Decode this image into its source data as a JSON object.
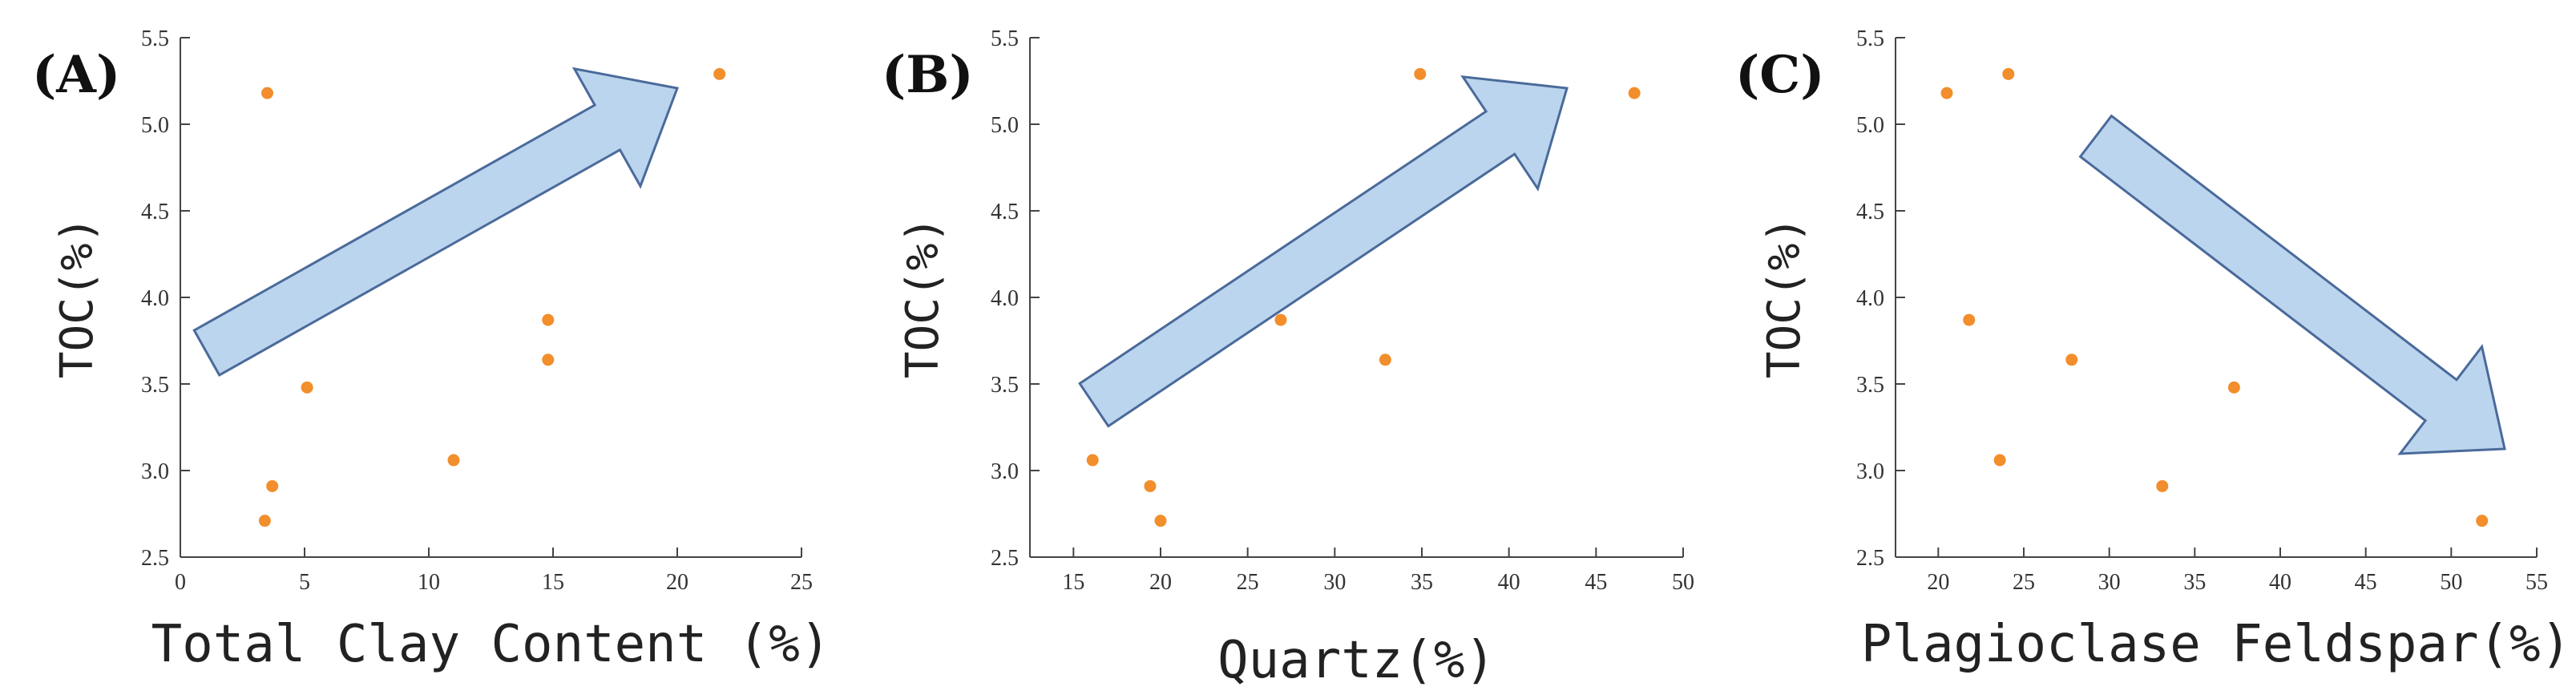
{
  "colors": {
    "point": "#f28e2b",
    "arrow_fill": "#bcd5ee",
    "arrow_stroke": "#4a6a9a"
  },
  "chart_data": [
    {
      "type": "scatter",
      "panel_label": "(A)",
      "xlabel": "Total Clay Content (%)",
      "ylabel": "TOC(%)",
      "xlim": [
        0,
        25
      ],
      "ylim": [
        2.5,
        5.5
      ],
      "xticks": [
        "0",
        "5",
        "10",
        "15",
        "20",
        "25"
      ],
      "yticks": [
        "2.5",
        "3.0",
        "3.5",
        "4.0",
        "4.5",
        "5.0",
        "5.5"
      ],
      "trend": "increasing",
      "points": [
        {
          "x": 3.5,
          "y": 5.18
        },
        {
          "x": 21.7,
          "y": 5.29
        },
        {
          "x": 14.8,
          "y": 3.87
        },
        {
          "x": 14.8,
          "y": 3.64
        },
        {
          "x": 5.1,
          "y": 3.48
        },
        {
          "x": 11.0,
          "y": 3.06
        },
        {
          "x": 3.7,
          "y": 2.91
        },
        {
          "x": 3.4,
          "y": 2.71
        }
      ]
    },
    {
      "type": "scatter",
      "panel_label": "(B)",
      "xlabel": "Quartz(%)",
      "ylabel": "TOC(%)",
      "xlim": [
        12.5,
        50
      ],
      "ylim": [
        2.5,
        5.5
      ],
      "xticks": [
        "15",
        "20",
        "25",
        "30",
        "35",
        "40",
        "45",
        "50"
      ],
      "yticks": [
        "2.5",
        "3.0",
        "3.5",
        "4.0",
        "4.5",
        "5.0",
        "5.5"
      ],
      "trend": "increasing",
      "points": [
        {
          "x": 34.9,
          "y": 5.29
        },
        {
          "x": 47.2,
          "y": 5.18
        },
        {
          "x": 26.9,
          "y": 3.87
        },
        {
          "x": 32.9,
          "y": 3.64
        },
        {
          "x": 16.1,
          "y": 3.06
        },
        {
          "x": 19.4,
          "y": 2.91
        },
        {
          "x": 20.0,
          "y": 2.71
        }
      ]
    },
    {
      "type": "scatter",
      "panel_label": "(C)",
      "xlabel": "Plagioclase Feldspar(%)",
      "ylabel": "TOC(%)",
      "xlim": [
        17.5,
        55
      ],
      "ylim": [
        2.5,
        5.5
      ],
      "xticks": [
        "20",
        "25",
        "30",
        "35",
        "40",
        "45",
        "50",
        "55"
      ],
      "yticks": [
        "2.5",
        "3.0",
        "3.5",
        "4.0",
        "4.5",
        "5.0",
        "5.5"
      ],
      "trend": "decreasing",
      "points": [
        {
          "x": 20.5,
          "y": 5.18
        },
        {
          "x": 24.1,
          "y": 5.29
        },
        {
          "x": 21.8,
          "y": 3.87
        },
        {
          "x": 27.8,
          "y": 3.64
        },
        {
          "x": 37.3,
          "y": 3.48
        },
        {
          "x": 23.6,
          "y": 3.06
        },
        {
          "x": 33.1,
          "y": 2.91
        },
        {
          "x": 51.8,
          "y": 2.71
        }
      ]
    }
  ]
}
